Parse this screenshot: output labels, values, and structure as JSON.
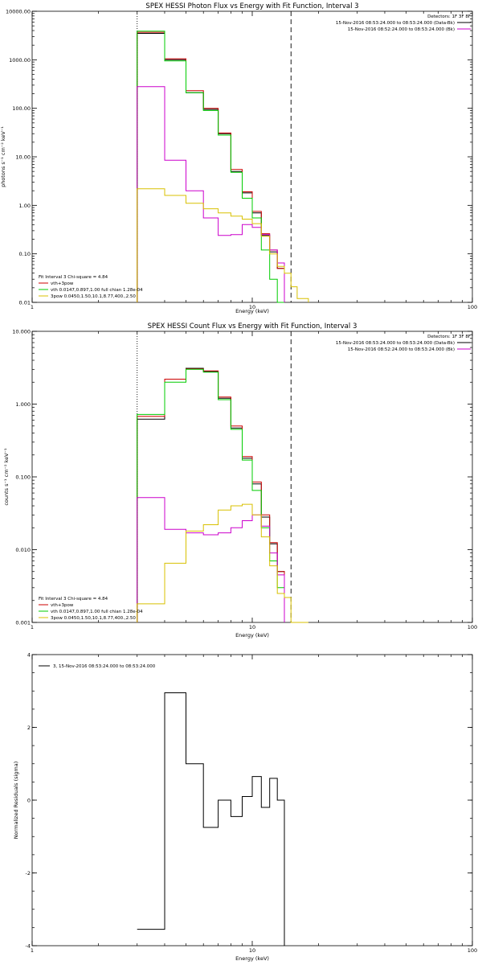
{
  "colors": {
    "black": "#000000",
    "red": "#cc0000",
    "green": "#00cc00",
    "magenta": "#cc00cc",
    "yellow": "#d8c000"
  },
  "chart_data": [
    {
      "type": "line",
      "title": "SPEX HESSI Photon Flux vs Energy with Fit Function, Interval 3",
      "xlabel": "Energy (keV)",
      "ylabel": "photons s⁻¹ cm⁻² keV⁻¹",
      "xscale": "log",
      "yscale": "log",
      "xlim": [
        1,
        100
      ],
      "ylim": [
        0.01,
        10000
      ],
      "x_ticks": [
        "1",
        "10",
        "100"
      ],
      "y_ticks": [
        "0.01",
        "0.10",
        "1.00",
        "10.00",
        "100.00",
        "1000.00",
        "10000.00"
      ],
      "detectors": "Detectors: 1F 3F 8F",
      "legend_top": [
        {
          "label": "15-Nov-2016 08:53:24.000 to 08:53:24.000 (Data-Bk)",
          "color": "black"
        },
        {
          "label": "15-Nov-2016 08:52:24.000 to 08:53:24.000 (Bk)",
          "color": "magenta"
        }
      ],
      "fit_info": "Fit Interval 3   Chi-square = 4.84",
      "legend_bottom": [
        {
          "label": "vth+3pow",
          "color": "red"
        },
        {
          "label": "vth 0.0147,0.897,1.00  full chian 1.28e-04",
          "color": "green"
        },
        {
          "label": "3pow 0.0450,1.50,10.1,8.77,400.,2.50",
          "color": "yellow"
        }
      ],
      "vlines": [
        {
          "x": 3.0,
          "style": "dotted"
        },
        {
          "x": 15.0,
          "style": "dashed"
        }
      ],
      "bin_edges": [
        3.0,
        4.0,
        5.0,
        6.0,
        7.0,
        8.0,
        9.0,
        10.0,
        11.0,
        12.0,
        13.0,
        14.0,
        15.0,
        16.0,
        18.0
      ],
      "series": [
        {
          "color": "black",
          "values": [
            3500,
            1000,
            210,
            95,
            30,
            5.0,
            1.8,
            0.7,
            0.24,
            0.11,
            0.05,
            null,
            null,
            null
          ]
        },
        {
          "color": "red",
          "values": [
            3700,
            1050,
            230,
            100,
            31,
            5.5,
            1.9,
            0.75,
            0.26,
            0.12,
            0.05,
            null,
            null,
            null
          ]
        },
        {
          "color": "green",
          "values": [
            3900,
            950,
            210,
            90,
            28,
            4.8,
            1.4,
            0.55,
            0.12,
            0.03,
            0.01,
            null,
            null,
            null
          ]
        },
        {
          "color": "magenta",
          "values": [
            280,
            8.5,
            2.0,
            0.55,
            0.24,
            0.25,
            0.4,
            0.35,
            0.25,
            0.12,
            0.065,
            null,
            null,
            null
          ]
        },
        {
          "color": "yellow",
          "values": [
            2.2,
            1.6,
            1.1,
            0.85,
            0.7,
            0.6,
            0.52,
            0.42,
            0.23,
            0.1,
            0.055,
            0.04,
            0.021,
            0.012
          ]
        }
      ]
    },
    {
      "type": "line",
      "title": "SPEX HESSI Count Flux vs Energy with Fit Function, Interval 3",
      "xlabel": "Energy (keV)",
      "ylabel": "counts s⁻¹ cm⁻² keV⁻¹",
      "xscale": "log",
      "yscale": "log",
      "xlim": [
        1,
        100
      ],
      "ylim": [
        0.001,
        10
      ],
      "x_ticks": [
        "1",
        "10",
        "100"
      ],
      "y_ticks": [
        "0.001",
        "0.010",
        "0.100",
        "1.000",
        "10.000"
      ],
      "detectors": "Detectors: 1F 3F 8F",
      "legend_top": [
        {
          "label": "15-Nov-2016 08:53:24.000 to 08:53:24.000 (Data-Bk)",
          "color": "black"
        },
        {
          "label": "15-Nov-2016 08:52:24.000 to 08:53:24.000 (Bk)",
          "color": "magenta"
        }
      ],
      "fit_info": "Fit Interval 3   Chi-square = 4.84",
      "legend_bottom": [
        {
          "label": "vth+3pow",
          "color": "red"
        },
        {
          "label": "vth 0.0147,0.897,1.00  full chian 1.28e-04",
          "color": "green"
        },
        {
          "label": "3pow 0.0450,1.50,10.1,8.77,400.,2.50",
          "color": "yellow"
        }
      ],
      "vlines": [
        {
          "x": 3.0,
          "style": "dotted"
        },
        {
          "x": 15.0,
          "style": "dashed"
        }
      ],
      "bin_edges": [
        3.0,
        4.0,
        5.0,
        6.0,
        7.0,
        8.0,
        9.0,
        10.0,
        11.0,
        12.0,
        13.0,
        14.0,
        15.0,
        16.0,
        18.0
      ],
      "series": [
        {
          "color": "black",
          "values": [
            0.62,
            2.2,
            3.1,
            2.8,
            1.2,
            0.47,
            0.18,
            0.08,
            0.028,
            0.012,
            0.005,
            null,
            null,
            null
          ]
        },
        {
          "color": "red",
          "values": [
            0.68,
            2.2,
            3.05,
            2.85,
            1.25,
            0.5,
            0.19,
            0.085,
            0.03,
            0.0125,
            0.005,
            null,
            null,
            null
          ]
        },
        {
          "color": "green",
          "values": [
            0.72,
            2.0,
            3.0,
            2.75,
            1.15,
            0.45,
            0.17,
            0.065,
            0.02,
            0.007,
            0.003,
            null,
            null,
            null
          ]
        },
        {
          "color": "magenta",
          "values": [
            0.052,
            0.019,
            0.017,
            0.016,
            0.017,
            0.02,
            0.025,
            0.03,
            0.021,
            0.009,
            0.0045,
            null,
            null,
            null
          ]
        },
        {
          "color": "yellow",
          "values": [
            0.0018,
            0.0065,
            0.018,
            0.022,
            0.035,
            0.04,
            0.042,
            0.03,
            0.015,
            0.006,
            0.0025,
            0.0022,
            0.001,
            0.001
          ]
        }
      ]
    },
    {
      "type": "line",
      "title": "",
      "xlabel": "Energy (keV)",
      "ylabel": "Normalized Residuals (sigma)",
      "xscale": "log",
      "yscale": "linear",
      "xlim": [
        1,
        100
      ],
      "ylim": [
        -4,
        4
      ],
      "x_ticks": [
        "1",
        "10",
        "100"
      ],
      "y_ticks": [
        "-4",
        "-2",
        "0",
        "2",
        "4"
      ],
      "legend_top_left": "3, 15-Nov-2016 08:53:24.000 to 08:53:24.000",
      "bin_edges": [
        3.0,
        4.0,
        5.0,
        6.0,
        7.0,
        8.0,
        9.0,
        10.0,
        11.0,
        12.0,
        13.0,
        14.0,
        15.0
      ],
      "series": [
        {
          "color": "black",
          "values": [
            -3.55,
            2.95,
            1.0,
            -0.75,
            0.0,
            -0.45,
            0.1,
            0.65,
            -0.2,
            0.6,
            0.0,
            null
          ]
        }
      ]
    }
  ]
}
